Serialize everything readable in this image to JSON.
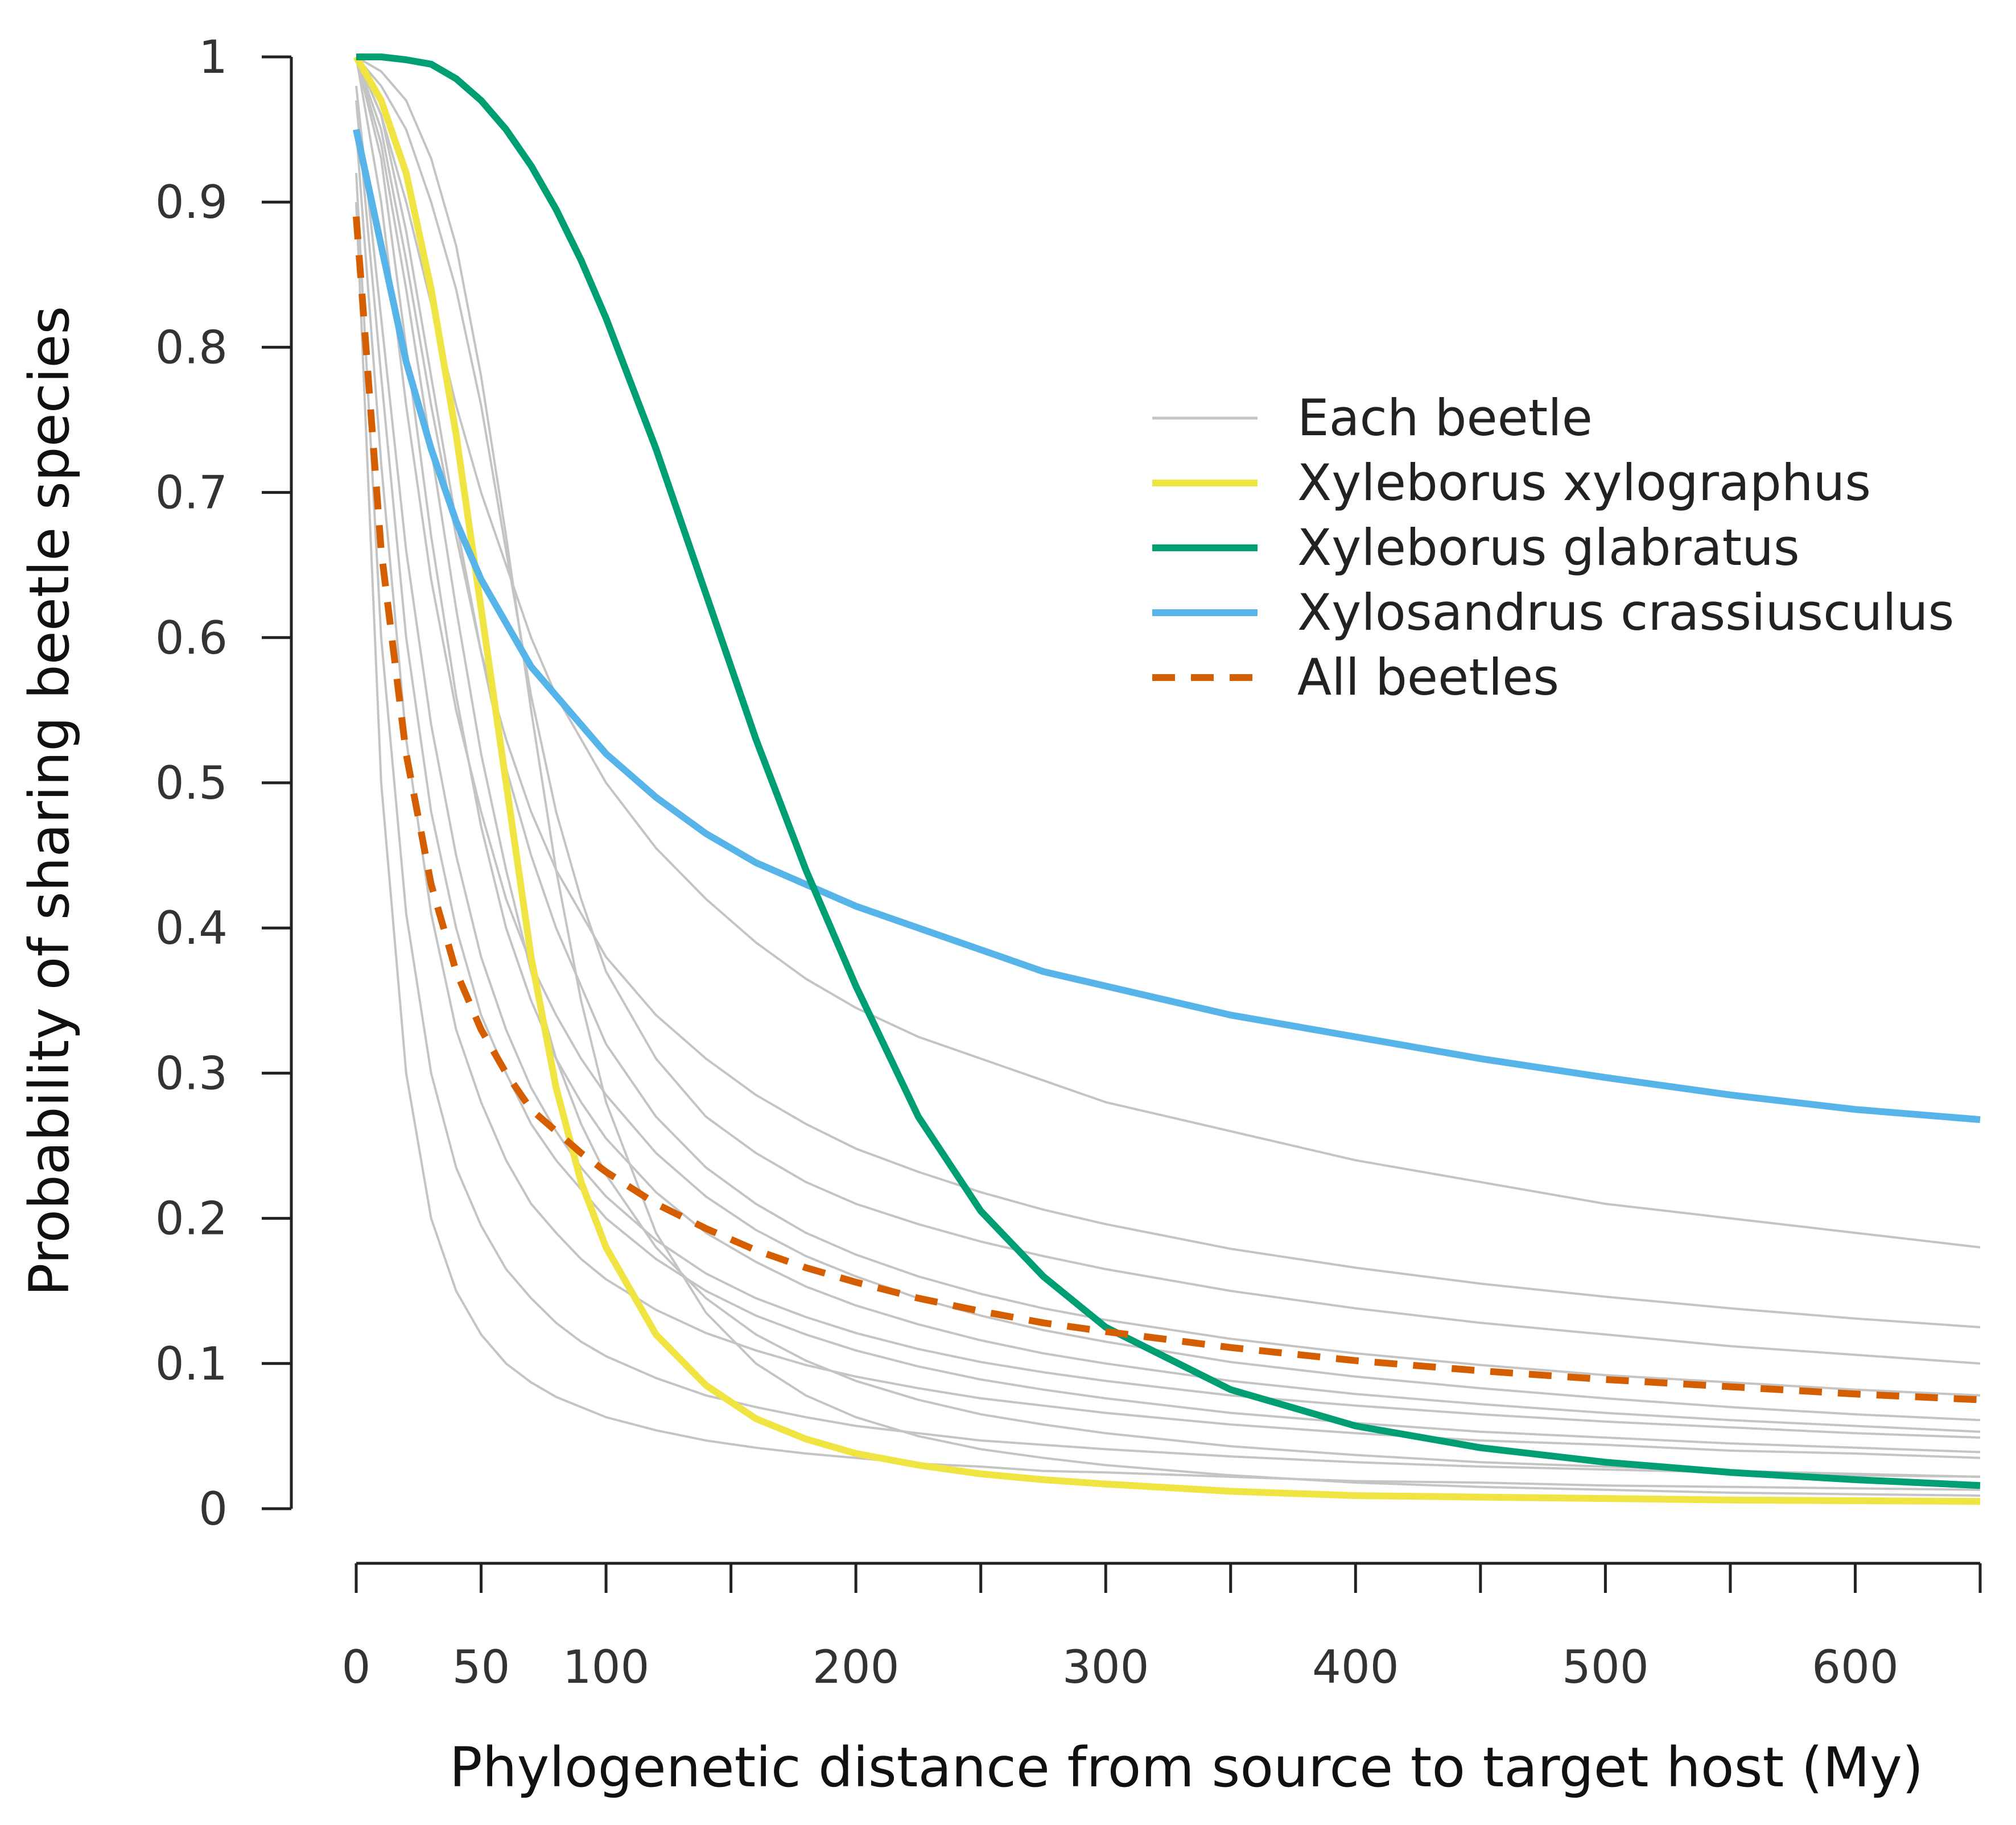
{
  "chart_data": {
    "type": "line",
    "xlabel": "Phylogenetic distance from source to target host (My)",
    "ylabel": "Probability of sharing beetle species",
    "xlim": [
      0,
      650
    ],
    "ylim": [
      0,
      1
    ],
    "x_ticks": [
      0,
      50,
      100,
      150,
      200,
      250,
      300,
      350,
      400,
      450,
      500,
      550,
      600,
      650
    ],
    "x_tick_labels": [
      "0",
      "50",
      "100",
      "",
      "200",
      "",
      "300",
      "",
      "400",
      "",
      "500",
      "",
      "600",
      ""
    ],
    "y_ticks": [
      0,
      0.1,
      0.2,
      0.3,
      0.4,
      0.5,
      0.6,
      0.7,
      0.8,
      0.9,
      1
    ],
    "y_tick_labels": [
      "0",
      "0.1",
      "0.2",
      "0.3",
      "0.4",
      "0.5",
      "0.6",
      "0.7",
      "0.8",
      "0.9",
      "1"
    ],
    "grid": false,
    "legend_position": "upper-right",
    "legend": [
      {
        "label": "Each beetle",
        "color": "#c4c4c4",
        "style": "solid"
      },
      {
        "label": "Xyleborus xylographus",
        "color": "#f0e442",
        "style": "solid"
      },
      {
        "label": "Xyleborus glabratus",
        "color": "#009e73",
        "style": "solid"
      },
      {
        "label": "Xylosandrus crassiusculus",
        "color": "#56b4e9",
        "style": "solid"
      },
      {
        "label": "All beetles",
        "color": "#d55e00",
        "style": "dashed"
      }
    ],
    "x": [
      0,
      10,
      20,
      30,
      40,
      50,
      60,
      70,
      80,
      90,
      100,
      120,
      140,
      160,
      180,
      200,
      225,
      250,
      275,
      300,
      350,
      400,
      450,
      500,
      550,
      600,
      650
    ],
    "series": [
      {
        "name": "Xyleborus xylographus",
        "color": "#f0e442",
        "values": [
          1.0,
          0.97,
          0.92,
          0.84,
          0.74,
          0.62,
          0.5,
          0.38,
          0.29,
          0.225,
          0.18,
          0.12,
          0.085,
          0.062,
          0.048,
          0.038,
          0.03,
          0.024,
          0.02,
          0.017,
          0.012,
          0.009,
          0.008,
          0.007,
          0.006,
          0.0055,
          0.005
        ]
      },
      {
        "name": "Xyleborus glabratus",
        "color": "#009e73",
        "values": [
          1.0,
          1.0,
          0.998,
          0.995,
          0.985,
          0.97,
          0.95,
          0.925,
          0.895,
          0.86,
          0.82,
          0.73,
          0.63,
          0.53,
          0.44,
          0.36,
          0.27,
          0.205,
          0.16,
          0.125,
          0.082,
          0.057,
          0.042,
          0.032,
          0.025,
          0.02,
          0.016
        ]
      },
      {
        "name": "Xylosandrus crassiusculus",
        "color": "#56b4e9",
        "values": [
          0.95,
          0.87,
          0.79,
          0.73,
          0.68,
          0.64,
          0.61,
          0.58,
          0.56,
          0.54,
          0.52,
          0.49,
          0.465,
          0.445,
          0.43,
          0.415,
          0.4,
          0.385,
          0.37,
          0.36,
          0.34,
          0.325,
          0.31,
          0.297,
          0.285,
          0.275,
          0.268
        ]
      },
      {
        "name": "All beetles",
        "color": "#d55e00",
        "dashed": true,
        "values": [
          0.89,
          0.66,
          0.52,
          0.43,
          0.37,
          0.33,
          0.3,
          0.275,
          0.26,
          0.245,
          0.232,
          0.21,
          0.193,
          0.178,
          0.166,
          0.156,
          0.145,
          0.136,
          0.128,
          0.122,
          0.111,
          0.102,
          0.095,
          0.089,
          0.084,
          0.079,
          0.075
        ]
      }
    ],
    "each_beetle": {
      "color": "#c4c4c4",
      "curves": [
        {
          "values": [
            1.0,
            0.96,
            0.9,
            0.83,
            0.76,
            0.7,
            0.65,
            0.6,
            0.56,
            0.53,
            0.5,
            0.455,
            0.42,
            0.39,
            0.365,
            0.345,
            0.325,
            0.31,
            0.295,
            0.28,
            0.26,
            0.24,
            0.225,
            0.21,
            0.2,
            0.19,
            0.18
          ]
        },
        {
          "values": [
            1.0,
            0.95,
            0.86,
            0.76,
            0.67,
            0.59,
            0.53,
            0.48,
            0.44,
            0.41,
            0.38,
            0.34,
            0.31,
            0.285,
            0.265,
            0.248,
            0.232,
            0.218,
            0.206,
            0.196,
            0.179,
            0.166,
            0.155,
            0.146,
            0.138,
            0.131,
            0.125
          ]
        },
        {
          "values": [
            1.0,
            0.98,
            0.95,
            0.9,
            0.84,
            0.76,
            0.66,
            0.56,
            0.48,
            0.42,
            0.37,
            0.31,
            0.27,
            0.245,
            0.225,
            0.21,
            0.196,
            0.184,
            0.174,
            0.165,
            0.15,
            0.138,
            0.128,
            0.12,
            0.112,
            0.106,
            0.1
          ]
        },
        {
          "values": [
            1.0,
            0.96,
            0.88,
            0.78,
            0.68,
            0.59,
            0.51,
            0.45,
            0.4,
            0.36,
            0.32,
            0.27,
            0.235,
            0.21,
            0.19,
            0.175,
            0.16,
            0.148,
            0.138,
            0.13,
            0.117,
            0.107,
            0.099,
            0.092,
            0.087,
            0.082,
            0.078
          ]
        },
        {
          "values": [
            1.0,
            0.9,
            0.76,
            0.64,
            0.55,
            0.48,
            0.42,
            0.375,
            0.34,
            0.31,
            0.285,
            0.245,
            0.215,
            0.192,
            0.174,
            0.16,
            0.145,
            0.133,
            0.123,
            0.115,
            0.101,
            0.091,
            0.083,
            0.076,
            0.07,
            0.065,
            0.061
          ]
        },
        {
          "values": [
            0.98,
            0.82,
            0.66,
            0.54,
            0.45,
            0.38,
            0.33,
            0.29,
            0.26,
            0.235,
            0.215,
            0.185,
            0.162,
            0.145,
            0.132,
            0.121,
            0.11,
            0.101,
            0.094,
            0.088,
            0.078,
            0.071,
            0.065,
            0.06,
            0.056,
            0.052,
            0.049
          ]
        },
        {
          "values": [
            1.0,
            0.94,
            0.84,
            0.73,
            0.62,
            0.52,
            0.44,
            0.37,
            0.31,
            0.265,
            0.23,
            0.18,
            0.145,
            0.12,
            0.102,
            0.088,
            0.075,
            0.065,
            0.058,
            0.052,
            0.043,
            0.037,
            0.032,
            0.029,
            0.026,
            0.024,
            0.022
          ]
        },
        {
          "values": [
            0.95,
            0.72,
            0.53,
            0.41,
            0.33,
            0.28,
            0.24,
            0.21,
            0.19,
            0.172,
            0.158,
            0.137,
            0.121,
            0.109,
            0.099,
            0.091,
            0.083,
            0.076,
            0.071,
            0.066,
            0.058,
            0.052,
            0.047,
            0.044,
            0.04,
            0.038,
            0.035
          ]
        },
        {
          "values": [
            0.92,
            0.6,
            0.41,
            0.3,
            0.235,
            0.195,
            0.165,
            0.145,
            0.128,
            0.115,
            0.105,
            0.09,
            0.078,
            0.07,
            0.063,
            0.057,
            0.052,
            0.047,
            0.044,
            0.041,
            0.036,
            0.032,
            0.029,
            0.027,
            0.025,
            0.023,
            0.022
          ]
        },
        {
          "values": [
            0.9,
            0.5,
            0.3,
            0.2,
            0.15,
            0.12,
            0.1,
            0.087,
            0.077,
            0.07,
            0.063,
            0.054,
            0.047,
            0.042,
            0.038,
            0.035,
            0.031,
            0.029,
            0.026,
            0.025,
            0.022,
            0.019,
            0.018,
            0.016,
            0.015,
            0.014,
            0.013
          ]
        },
        {
          "values": [
            1.0,
            0.99,
            0.97,
            0.93,
            0.87,
            0.78,
            0.67,
            0.55,
            0.44,
            0.35,
            0.28,
            0.19,
            0.135,
            0.1,
            0.078,
            0.063,
            0.05,
            0.041,
            0.035,
            0.03,
            0.023,
            0.018,
            0.015,
            0.013,
            0.011,
            0.01,
            0.009
          ]
        },
        {
          "values": [
            0.97,
            0.78,
            0.6,
            0.48,
            0.4,
            0.34,
            0.3,
            0.265,
            0.24,
            0.22,
            0.2,
            0.172,
            0.15,
            0.133,
            0.12,
            0.109,
            0.098,
            0.089,
            0.082,
            0.076,
            0.066,
            0.059,
            0.053,
            0.049,
            0.045,
            0.042,
            0.039
          ]
        },
        {
          "values": [
            1.0,
            0.93,
            0.8,
            0.67,
            0.56,
            0.47,
            0.4,
            0.35,
            0.31,
            0.28,
            0.255,
            0.218,
            0.19,
            0.17,
            0.153,
            0.14,
            0.127,
            0.116,
            0.107,
            0.1,
            0.088,
            0.079,
            0.072,
            0.066,
            0.061,
            0.057,
            0.053
          ]
        }
      ]
    }
  }
}
